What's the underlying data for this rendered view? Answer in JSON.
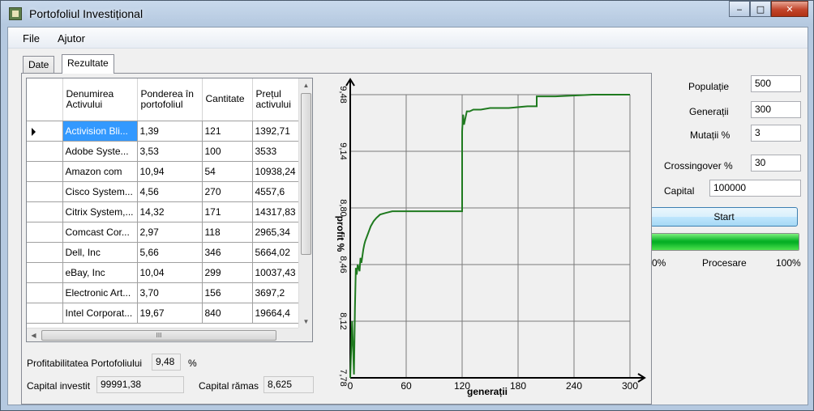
{
  "window": {
    "title": "Portofoliul Investițional",
    "minimize": "‒",
    "maximize": "□",
    "close": "✕",
    "accent": "#06b025"
  },
  "menu": [
    "File",
    "Ajutor"
  ],
  "tabs": [
    {
      "label": "Date",
      "active": false
    },
    {
      "label": "Rezultate",
      "active": true
    }
  ],
  "table": {
    "columns": [
      "Denumirea Activului",
      "Ponderea în portofoliul",
      "Cantitate",
      "Prețul activului"
    ],
    "rows": [
      [
        "Activision Bli...",
        "1,39",
        "121",
        "1392,71"
      ],
      [
        "Adobe Syste...",
        "3,53",
        "100",
        "3533"
      ],
      [
        "Amazon com",
        "10,94",
        "54",
        "10938,24"
      ],
      [
        "Cisco System...",
        "4,56",
        "270",
        "4557,6"
      ],
      [
        "Citrix System,...",
        "14,32",
        "171",
        "14317,83"
      ],
      [
        "Comcast Cor...",
        "2,97",
        "118",
        "2965,34"
      ],
      [
        "Dell, Inc",
        "5,66",
        "346",
        "5664,02"
      ],
      [
        "eBay, Inc",
        "10,04",
        "299",
        "10037,43"
      ],
      [
        "Electronic Art...",
        "3,70",
        "156",
        "3697,2"
      ],
      [
        "Intel Corporat...",
        "19,67",
        "840",
        "19664,4"
      ]
    ],
    "selected_row": 0,
    "hscroll_grip": "III"
  },
  "summary": {
    "profit_label": "Profitabilitatea Portofoliului",
    "profit_value": "9,48",
    "profit_unit": "%",
    "invested_label": "Capital investit",
    "invested_value": "99991,38",
    "remaining_label": "Capital rămas",
    "remaining_value": "8,625"
  },
  "params": {
    "populatie_label": "Populație",
    "populatie": "500",
    "generatii_label": "Generații",
    "generatii": "300",
    "mutatii_label": "Mutații %",
    "mutatii": "3",
    "crossingover_label": "Crossingover %",
    "crossingover": "30",
    "capital_label": "Capital",
    "capital": "100000",
    "start_label": "Start",
    "progress_min": "0%",
    "progress_label": "Procesare",
    "progress_max": "100%",
    "progress_fraction": 1.0
  },
  "chart_data": {
    "type": "line",
    "xlabel": "generații",
    "ylabel": "profit %",
    "xlim": [
      0,
      300
    ],
    "ylim": [
      7.78,
      9.48
    ],
    "xticks": [
      "0",
      "60",
      "120",
      "180",
      "240",
      "300"
    ],
    "yticks": [
      "7,78",
      "8,12",
      "8,46",
      "8,80",
      "9,14",
      "9,48"
    ],
    "grid": true,
    "line_color": "#1f7a1f",
    "series": [
      {
        "x": [
          0,
          2,
          4,
          5,
          6,
          7,
          8,
          10,
          11,
          12,
          14,
          15,
          16,
          18,
          20,
          22,
          25,
          28,
          32,
          38,
          45,
          55,
          70,
          90,
          110,
          120,
          120,
          121,
          122,
          125,
          128,
          132,
          140,
          150,
          170,
          190,
          200,
          200,
          220,
          260,
          300
        ],
        "y": [
          7.78,
          8.12,
          7.8,
          8.2,
          8.44,
          8.4,
          8.46,
          8.42,
          8.5,
          8.47,
          8.55,
          8.58,
          8.6,
          8.63,
          8.66,
          8.69,
          8.72,
          8.74,
          8.76,
          8.77,
          8.78,
          8.78,
          8.78,
          8.78,
          8.78,
          8.78,
          9.26,
          9.36,
          9.3,
          9.38,
          9.38,
          9.39,
          9.39,
          9.4,
          9.4,
          9.41,
          9.41,
          9.47,
          9.47,
          9.48,
          9.48
        ]
      }
    ]
  }
}
